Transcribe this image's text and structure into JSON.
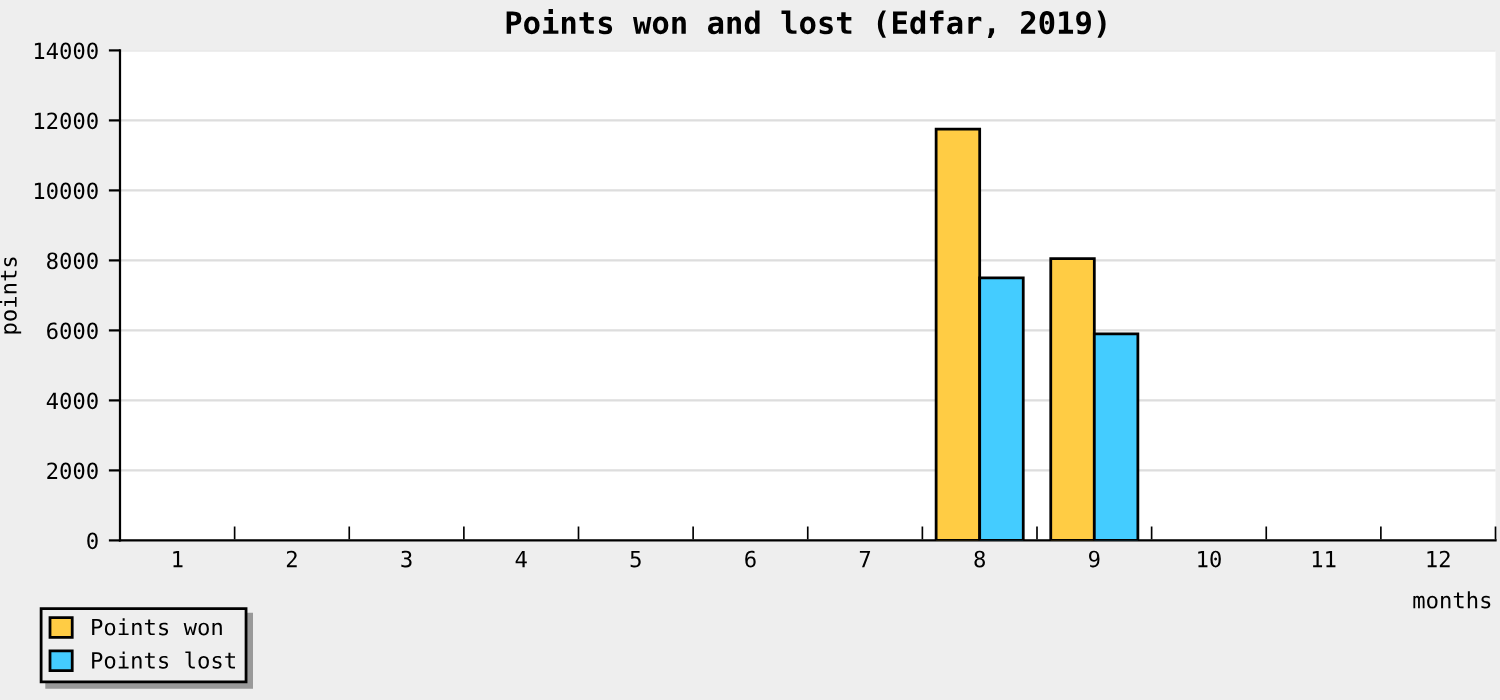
{
  "chart_data": {
    "type": "bar",
    "title": "Points won and lost (Edfar, 2019)",
    "xlabel": "months",
    "ylabel": "points",
    "categories": [
      "1",
      "2",
      "3",
      "4",
      "5",
      "6",
      "7",
      "8",
      "9",
      "10",
      "11",
      "12"
    ],
    "series": [
      {
        "name": "Points won",
        "color": "#ffcc44",
        "values": [
          0,
          0,
          0,
          0,
          0,
          0,
          0,
          11750,
          8050,
          0,
          0,
          0
        ]
      },
      {
        "name": "Points lost",
        "color": "#44ccff",
        "values": [
          0,
          0,
          0,
          0,
          0,
          0,
          0,
          7500,
          5900,
          0,
          0,
          0
        ]
      }
    ],
    "ylim": [
      0,
      14000
    ],
    "yticks": [
      0,
      2000,
      4000,
      6000,
      8000,
      10000,
      12000,
      14000
    ],
    "grid": "y",
    "legend": "bottom left"
  }
}
